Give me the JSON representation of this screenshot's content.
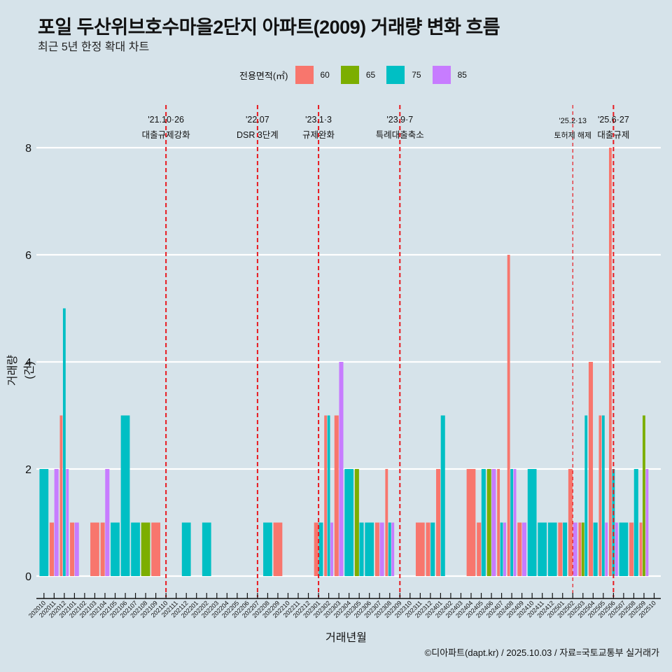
{
  "title": "포일 두산위브호수마을2단지 아파트(2009) 거래량 변화 흐름",
  "subtitle": "최근 5년 한정 확대 차트",
  "legend": {
    "title": "전용면적(㎡)",
    "items": [
      {
        "label": "60",
        "color": "#F8766D"
      },
      {
        "label": "65",
        "color": "#7CAE00"
      },
      {
        "label": "75",
        "color": "#00BFC4"
      },
      {
        "label": "85",
        "color": "#C77CFF"
      }
    ]
  },
  "caption": "©디아파트(dapt.kr) / 2025.10.03 / 자료=국토교통부 실거래가",
  "chart_data": {
    "type": "bar",
    "title": "포일 두산위브호수마을2단지 아파트(2009) 거래량 변화 흐름",
    "subtitle": "최근 5년 한정 확대 차트",
    "xlabel": "거래년월",
    "ylabel": "거래량(건)",
    "ylim": [
      -0.35,
      8.35
    ],
    "yticks": [
      0,
      2,
      4,
      6,
      8
    ],
    "grid": true,
    "legend_position": "top",
    "categories": [
      "202010",
      "202011",
      "202012",
      "202101",
      "202102",
      "202103",
      "202104",
      "202105",
      "202106",
      "202107",
      "202108",
      "202109",
      "202110",
      "202111",
      "202112",
      "202201",
      "202202",
      "202203",
      "202204",
      "202205",
      "202206",
      "202207",
      "202208",
      "202209",
      "202210",
      "202211",
      "202212",
      "202301",
      "202302",
      "202303",
      "202304",
      "202305",
      "202306",
      "202307",
      "202308",
      "202309",
      "202310",
      "202311",
      "202312",
      "202401",
      "202402",
      "202403",
      "202404",
      "202405",
      "202406",
      "202407",
      "202408",
      "202409",
      "202410",
      "202411",
      "202412",
      "202501",
      "202502",
      "202503",
      "202504",
      "202505",
      "202506",
      "202507",
      "202508",
      "202509",
      "202510"
    ],
    "series_names": [
      "60",
      "65",
      "75",
      "85"
    ],
    "bars": [
      {
        "month": "202010",
        "60": 0,
        "65": 0,
        "75": 2,
        "85": 0
      },
      {
        "month": "202011",
        "60": 1,
        "65": 0,
        "75": 0,
        "85": 2
      },
      {
        "month": "202012",
        "60": 3,
        "65": 0,
        "75": 5,
        "85": 2
      },
      {
        "month": "202101",
        "60": 1,
        "65": 0,
        "75": 0,
        "85": 1
      },
      {
        "month": "202103",
        "60": 1,
        "65": 0,
        "75": 0,
        "85": 0
      },
      {
        "month": "202104",
        "60": 1,
        "65": 0,
        "75": 0,
        "85": 2
      },
      {
        "month": "202105",
        "60": 0,
        "65": 0,
        "75": 1,
        "85": 0
      },
      {
        "month": "202106",
        "60": 0,
        "65": 0,
        "75": 3,
        "85": 0
      },
      {
        "month": "202107",
        "60": 0,
        "65": 0,
        "75": 1,
        "85": 0
      },
      {
        "month": "202108",
        "60": 0,
        "65": 1,
        "75": 0,
        "85": 0
      },
      {
        "month": "202109",
        "60": 1,
        "65": 0,
        "75": 0,
        "85": 0
      },
      {
        "month": "202112",
        "60": 0,
        "65": 0,
        "75": 1,
        "85": 0
      },
      {
        "month": "202202",
        "60": 0,
        "65": 0,
        "75": 1,
        "85": 0
      },
      {
        "month": "202208",
        "60": 0,
        "65": 0,
        "75": 1,
        "85": 0
      },
      {
        "month": "202209",
        "60": 1,
        "65": 0,
        "75": 0,
        "85": 0
      },
      {
        "month": "202301",
        "60": 1,
        "65": 0,
        "75": 1,
        "85": 0
      },
      {
        "month": "202302",
        "60": 3,
        "65": 0,
        "75": 3,
        "85": 1
      },
      {
        "month": "202303",
        "60": 3,
        "65": 0,
        "75": 0,
        "85": 4
      },
      {
        "month": "202304",
        "60": 0,
        "65": 0,
        "75": 2,
        "85": 0
      },
      {
        "month": "202305",
        "60": 0,
        "65": 2,
        "75": 1,
        "85": 0
      },
      {
        "month": "202306",
        "60": 0,
        "65": 0,
        "75": 1,
        "85": 0
      },
      {
        "month": "202307",
        "60": 1,
        "65": 0,
        "75": 0,
        "85": 1
      },
      {
        "month": "202308",
        "60": 2,
        "65": 0,
        "75": 1,
        "85": 1
      },
      {
        "month": "202311",
        "60": 1,
        "65": 0,
        "75": 0,
        "85": 0
      },
      {
        "month": "202312",
        "60": 1,
        "65": 0,
        "75": 1,
        "85": 0
      },
      {
        "month": "202401",
        "60": 2,
        "65": 0,
        "75": 3,
        "85": 0
      },
      {
        "month": "202404",
        "60": 2,
        "65": 0,
        "75": 0,
        "85": 0
      },
      {
        "month": "202405",
        "60": 1,
        "65": 0,
        "75": 2,
        "85": 0
      },
      {
        "month": "202406",
        "60": 0,
        "65": 2,
        "75": 0,
        "85": 2
      },
      {
        "month": "202407",
        "60": 2,
        "65": 0,
        "75": 1,
        "85": 1
      },
      {
        "month": "202408",
        "60": 6,
        "65": 0,
        "75": 2,
        "85": 2
      },
      {
        "month": "202409",
        "60": 1,
        "65": 0,
        "75": 0,
        "85": 1
      },
      {
        "month": "202410",
        "60": 0,
        "65": 0,
        "75": 2,
        "85": 0
      },
      {
        "month": "202411",
        "60": 0,
        "65": 0,
        "75": 1,
        "85": 0
      },
      {
        "month": "202412",
        "60": 0,
        "65": 0,
        "75": 1,
        "85": 0
      },
      {
        "month": "202501",
        "60": 1,
        "65": 0,
        "75": 1,
        "85": 0
      },
      {
        "month": "202502",
        "60": 2,
        "65": 0,
        "75": 0,
        "85": 1
      },
      {
        "month": "202503",
        "60": 1,
        "65": 1,
        "75": 3,
        "85": 0
      },
      {
        "month": "202504",
        "60": 4,
        "65": 0,
        "75": 1,
        "85": 0
      },
      {
        "month": "202505",
        "60": 3,
        "65": 0,
        "75": 3,
        "85": 1
      },
      {
        "month": "202506",
        "60": 8,
        "65": 0,
        "75": 2,
        "85": 1
      },
      {
        "month": "202507",
        "60": 0,
        "65": 0,
        "75": 1,
        "85": 0
      },
      {
        "month": "202508",
        "60": 1,
        "65": 0,
        "75": 2,
        "85": 0
      },
      {
        "month": "202509",
        "60": 1,
        "65": 3,
        "75": 0,
        "85": 2
      }
    ],
    "annotations": [
      {
        "month": "202110",
        "date": "'21.10·26",
        "label": "대출규제강화",
        "style": "thick"
      },
      {
        "month": "202207",
        "date": "'22.07",
        "label": "DSR 3단계",
        "style": "thick"
      },
      {
        "month": "202301",
        "date": "'23.1·3",
        "label": "규제완화",
        "style": "thick"
      },
      {
        "month": "202309",
        "date": "'23.9·7",
        "label": "특례대출축소",
        "style": "thick"
      },
      {
        "month": "202502",
        "date": "'25.2·13",
        "label": "토허제 해제",
        "style": "thin"
      },
      {
        "month": "202506",
        "date": "'25.6·27",
        "label": "대출규제",
        "style": "thick"
      }
    ]
  }
}
